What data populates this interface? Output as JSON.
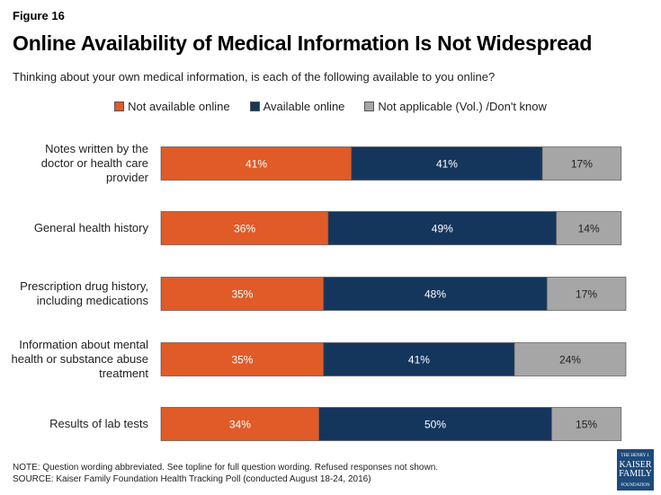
{
  "figure_label": "Figure 16",
  "chart_data": {
    "type": "bar",
    "orientation": "horizontal",
    "stacked": true,
    "title": "Online Availability of Medical Information Is Not Widespread",
    "subtitle": "Thinking about your own medical information, is each of the following available to you online?",
    "categories": [
      "Notes written by the doctor or health care provider",
      "General health history",
      "Prescription drug history, including medications",
      "Information about mental health or substance abuse treatment",
      "Results of lab tests"
    ],
    "category_lines": [
      [
        "Notes written by the",
        "doctor or health care",
        "provider"
      ],
      [
        "General health history"
      ],
      [
        "Prescription drug history,",
        "including medications"
      ],
      [
        "Information about mental",
        "health or substance abuse",
        "treatment"
      ],
      [
        "Results of lab tests"
      ]
    ],
    "series": [
      {
        "name": "Not available online",
        "color": "#E05B28",
        "values": [
          41,
          36,
          35,
          35,
          34
        ]
      },
      {
        "name": "Available online",
        "color": "#14365D",
        "values": [
          41,
          49,
          48,
          41,
          50
        ]
      },
      {
        "name": "Not applicable (Vol.) /Don't know",
        "color": "#A6A6A6",
        "values": [
          17,
          14,
          17,
          24,
          15
        ]
      }
    ],
    "value_suffix": "%",
    "legend_position": "top",
    "grid": false
  },
  "footer": {
    "note": "NOTE: Question wording abbreviated. See topline for full question wording. Refused responses not shown.",
    "source": "SOURCE: Kaiser Family Foundation Health Tracking Poll (conducted August 18-24, 2016)"
  },
  "logo": {
    "line1": "THE HENRY J.",
    "line2": "KAISER",
    "line3": "FAMILY",
    "line4": "FOUNDATION"
  }
}
